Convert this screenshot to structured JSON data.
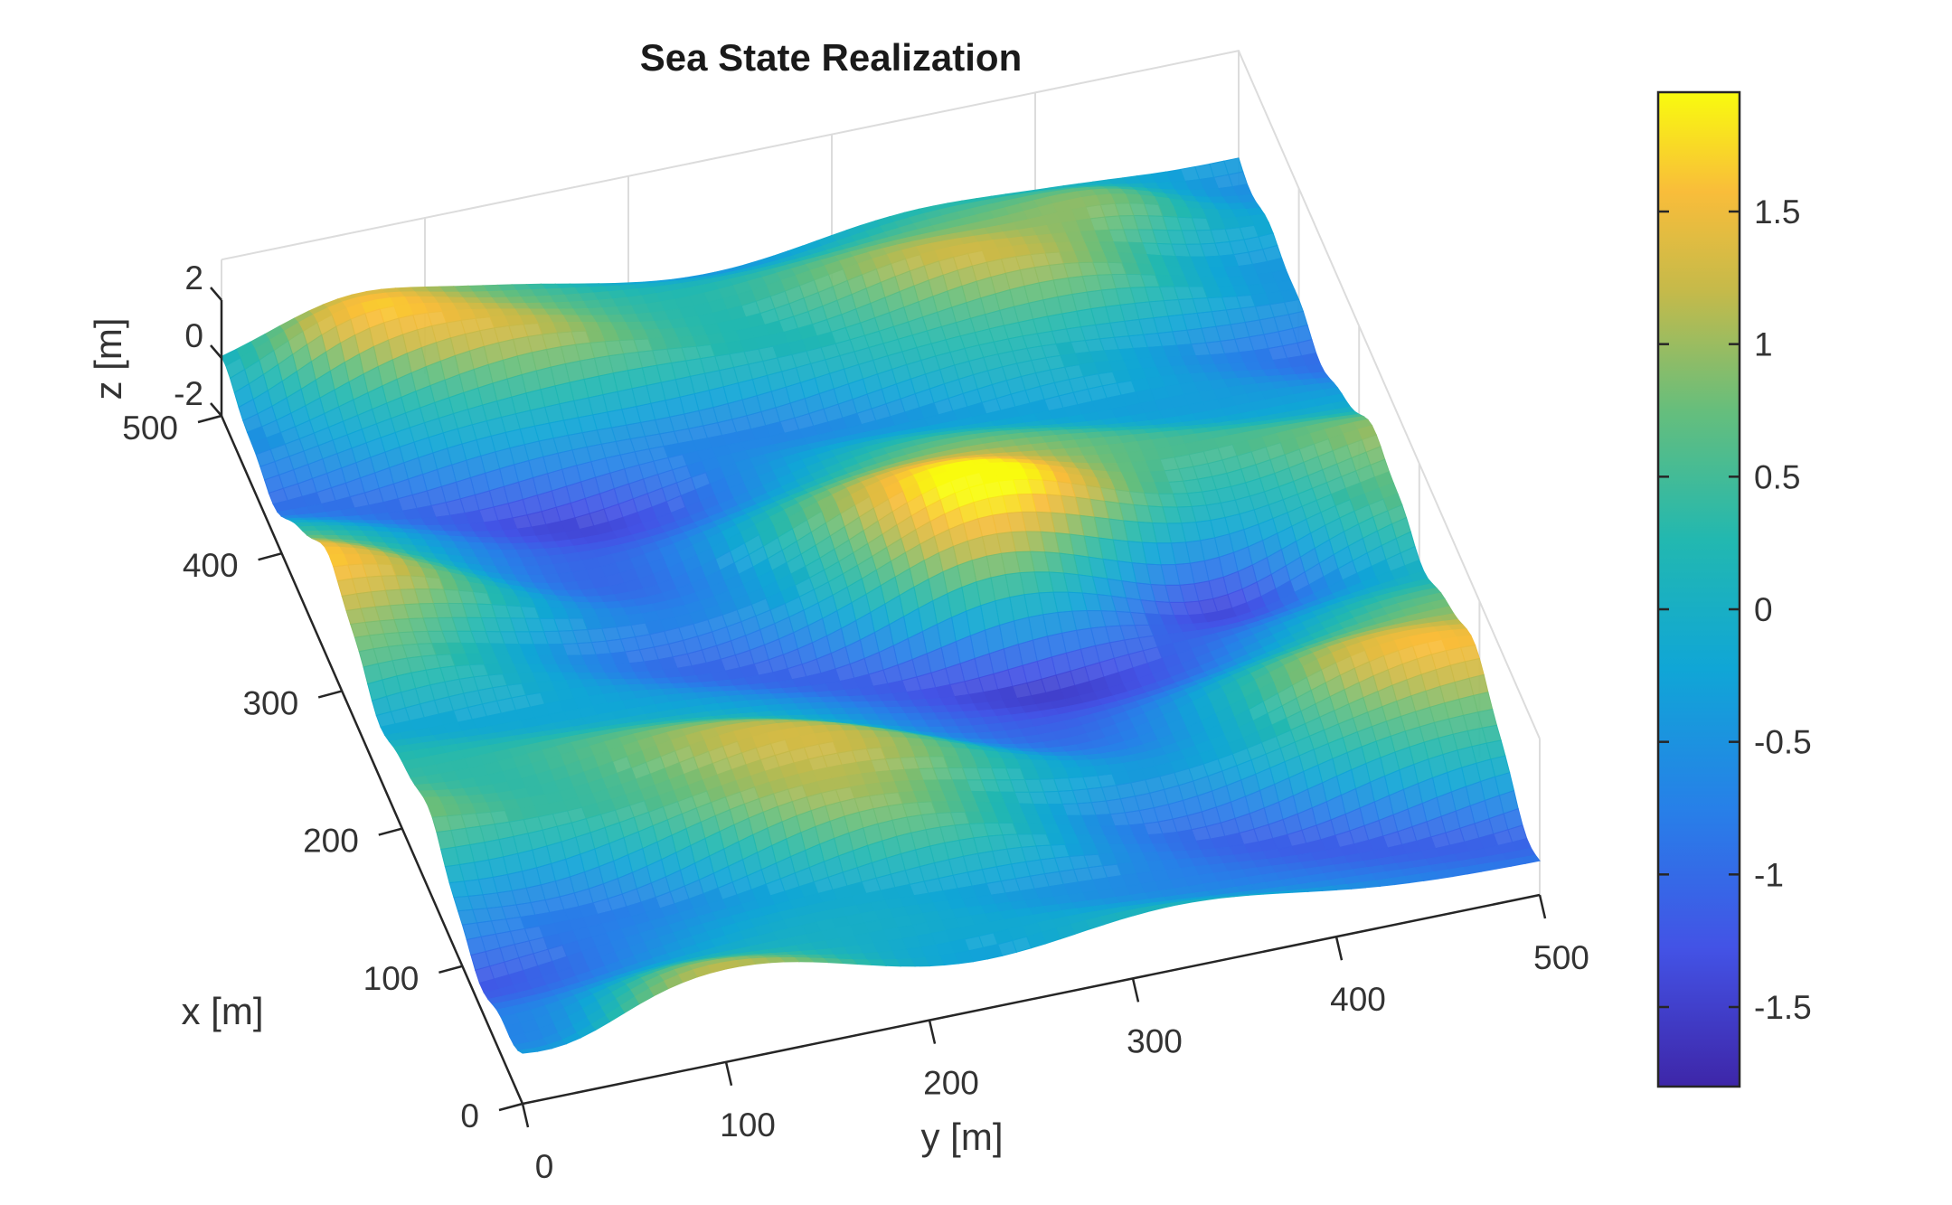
{
  "chart_data": {
    "type": "surface",
    "title": "Sea State Realization",
    "xlabel": "x [m]",
    "ylabel": "y [m]",
    "zlabel": "z [m]",
    "x_range": [
      0,
      500
    ],
    "y_range": [
      0,
      500
    ],
    "z_range": [
      -2,
      2
    ],
    "x_ticks": [
      "0",
      "100",
      "200",
      "300",
      "400",
      "500"
    ],
    "y_ticks": [
      "0",
      "100",
      "200",
      "300",
      "400",
      "500"
    ],
    "z_ticks": [
      "-2",
      "0",
      "2"
    ],
    "colorbar": {
      "range": [
        -1.8,
        1.95
      ],
      "ticks": [
        "-1.5",
        "-1",
        "-0.5",
        "0",
        "0.5",
        "1",
        "1.5"
      ],
      "tick_values": [
        -1.5,
        -1,
        -0.5,
        0,
        0.5,
        1,
        1.5
      ],
      "colormap": "parula"
    },
    "grid": true,
    "colors": {
      "low": "#3e26a8",
      "mid_low": "#1e90dc",
      "mid": "#2ab6b8",
      "mid_high": "#b8bc48",
      "high": "#f9fb0e"
    }
  }
}
